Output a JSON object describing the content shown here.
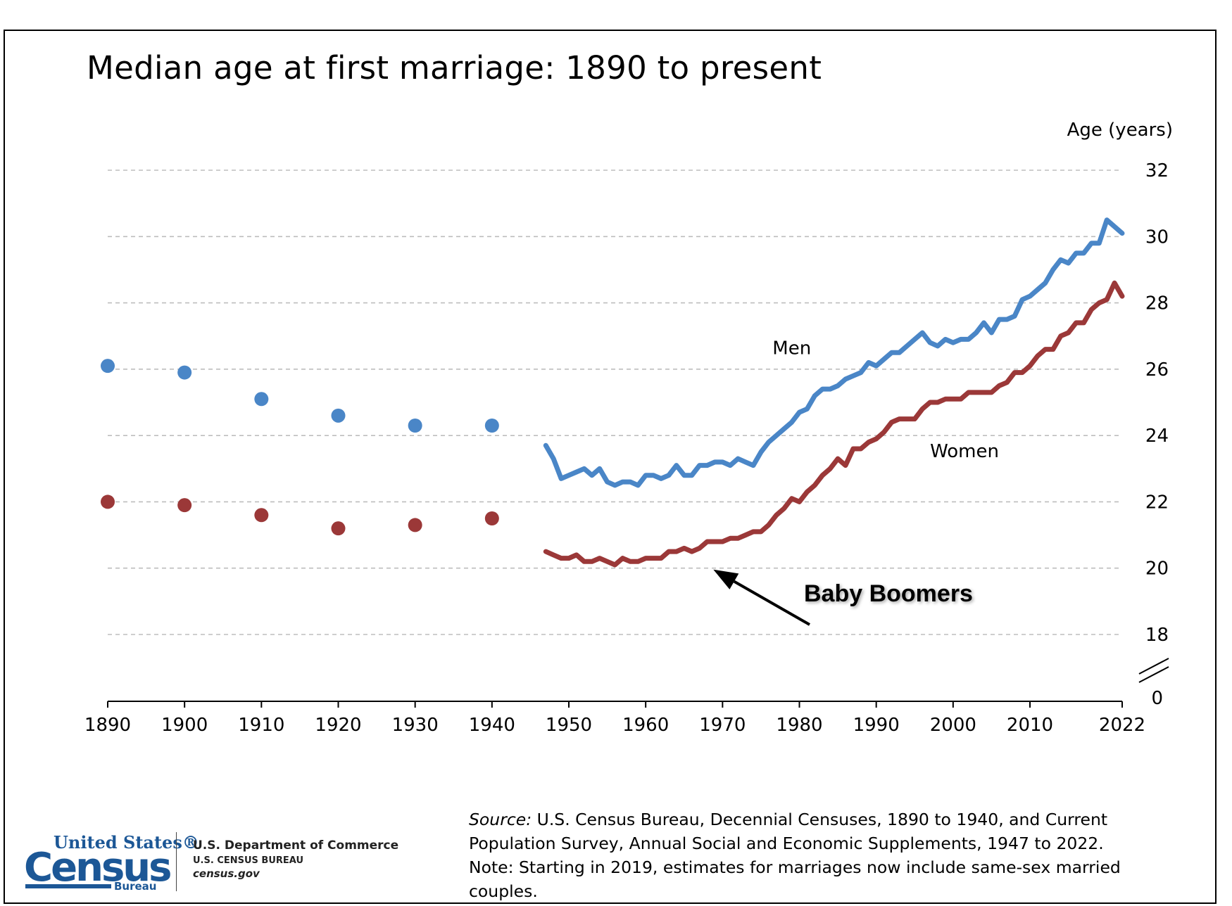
{
  "chart_data": {
    "type": "line",
    "title": "Median age at first marriage: 1890 to present",
    "ylabel": "Age (years)",
    "xlabel": "",
    "xlim": [
      1890,
      2022
    ],
    "ylim": [
      18,
      32
    ],
    "y_break": true,
    "x_ticks": [
      "1890",
      "1900",
      "1910",
      "1920",
      "1930",
      "1940",
      "1950",
      "1960",
      "1970",
      "1980",
      "1990",
      "2000",
      "2010",
      "2022"
    ],
    "y_ticks": [
      "0",
      "18",
      "20",
      "22",
      "24",
      "26",
      "28",
      "30",
      "32"
    ],
    "grid": "horizontal dashed",
    "series": [
      {
        "name": "Men",
        "color": "#4a86c7",
        "decennial_points": {
          "x": [
            1890,
            1900,
            1910,
            1920,
            1930,
            1940
          ],
          "y": [
            26.1,
            25.9,
            25.1,
            24.6,
            24.3,
            24.3
          ]
        },
        "annual_line": {
          "x": [
            1947,
            1948,
            1949,
            1950,
            1951,
            1952,
            1953,
            1954,
            1955,
            1956,
            1957,
            1958,
            1959,
            1960,
            1961,
            1962,
            1963,
            1964,
            1965,
            1966,
            1967,
            1968,
            1969,
            1970,
            1971,
            1972,
            1973,
            1974,
            1975,
            1976,
            1977,
            1978,
            1979,
            1980,
            1981,
            1982,
            1983,
            1984,
            1985,
            1986,
            1987,
            1988,
            1989,
            1990,
            1991,
            1992,
            1993,
            1994,
            1995,
            1996,
            1997,
            1998,
            1999,
            2000,
            2001,
            2002,
            2003,
            2004,
            2005,
            2006,
            2007,
            2008,
            2009,
            2010,
            2011,
            2012,
            2013,
            2014,
            2015,
            2016,
            2017,
            2018,
            2019,
            2020,
            2021,
            2022
          ],
          "y": [
            23.7,
            23.3,
            22.7,
            22.8,
            22.9,
            23.0,
            22.8,
            23.0,
            22.6,
            22.5,
            22.6,
            22.6,
            22.5,
            22.8,
            22.8,
            22.7,
            22.8,
            23.1,
            22.8,
            22.8,
            23.1,
            23.1,
            23.2,
            23.2,
            23.1,
            23.3,
            23.2,
            23.1,
            23.5,
            23.8,
            24.0,
            24.2,
            24.4,
            24.7,
            24.8,
            25.2,
            25.4,
            25.4,
            25.5,
            25.7,
            25.8,
            25.9,
            26.2,
            26.1,
            26.3,
            26.5,
            26.5,
            26.7,
            26.9,
            27.1,
            26.8,
            26.7,
            26.9,
            26.8,
            26.9,
            26.9,
            27.1,
            27.4,
            27.1,
            27.5,
            27.5,
            27.6,
            28.1,
            28.2,
            28.4,
            28.6,
            29.0,
            29.3,
            29.2,
            29.5,
            29.5,
            29.8,
            29.8,
            30.5,
            30.3,
            30.1
          ]
        }
      },
      {
        "name": "Women",
        "color": "#9b3838",
        "decennial_points": {
          "x": [
            1890,
            1900,
            1910,
            1920,
            1930,
            1940
          ],
          "y": [
            22.0,
            21.9,
            21.6,
            21.2,
            21.3,
            21.5
          ]
        },
        "annual_line": {
          "x": [
            1947,
            1948,
            1949,
            1950,
            1951,
            1952,
            1953,
            1954,
            1955,
            1956,
            1957,
            1958,
            1959,
            1960,
            1961,
            1962,
            1963,
            1964,
            1965,
            1966,
            1967,
            1968,
            1969,
            1970,
            1971,
            1972,
            1973,
            1974,
            1975,
            1976,
            1977,
            1978,
            1979,
            1980,
            1981,
            1982,
            1983,
            1984,
            1985,
            1986,
            1987,
            1988,
            1989,
            1990,
            1991,
            1992,
            1993,
            1994,
            1995,
            1996,
            1997,
            1998,
            1999,
            2000,
            2001,
            2002,
            2003,
            2004,
            2005,
            2006,
            2007,
            2008,
            2009,
            2010,
            2011,
            2012,
            2013,
            2014,
            2015,
            2016,
            2017,
            2018,
            2019,
            2020,
            2021,
            2022
          ],
          "y": [
            20.5,
            20.4,
            20.3,
            20.3,
            20.4,
            20.2,
            20.2,
            20.3,
            20.2,
            20.1,
            20.3,
            20.2,
            20.2,
            20.3,
            20.3,
            20.3,
            20.5,
            20.5,
            20.6,
            20.5,
            20.6,
            20.8,
            20.8,
            20.8,
            20.9,
            20.9,
            21.0,
            21.1,
            21.1,
            21.3,
            21.6,
            21.8,
            22.1,
            22.0,
            22.3,
            22.5,
            22.8,
            23.0,
            23.3,
            23.1,
            23.6,
            23.6,
            23.8,
            23.9,
            24.1,
            24.4,
            24.5,
            24.5,
            24.5,
            24.8,
            25.0,
            25.0,
            25.1,
            25.1,
            25.1,
            25.3,
            25.3,
            25.3,
            25.3,
            25.5,
            25.6,
            25.9,
            25.9,
            26.1,
            26.4,
            26.6,
            26.6,
            27.0,
            27.1,
            27.4,
            27.4,
            27.8,
            28.0,
            28.1,
            28.6,
            28.2
          ]
        }
      }
    ],
    "annotations": [
      {
        "text": "Baby Boomers",
        "x": 1970,
        "y": 20.0,
        "style": "arrow pointing to women's line"
      }
    ]
  },
  "footer": {
    "source_lead": "Source:",
    "source_rest": " U.S. Census Bureau, Decennial Censuses, 1890 to 1940, and Current Population Survey, Annual Social and Economic Supplements, 1947 to 2022.",
    "note": "Note: Starting in 2019, estimates for marriages now include same-sex married couples."
  },
  "branding": {
    "logo_top": "United States®",
    "logo_main": "Census",
    "logo_sub": "Bureau",
    "dept_line1": "U.S. Department of Commerce",
    "dept_line2": "U.S. CENSUS BUREAU",
    "dept_line3": "census.gov",
    "logo_color": "#1c5796"
  }
}
